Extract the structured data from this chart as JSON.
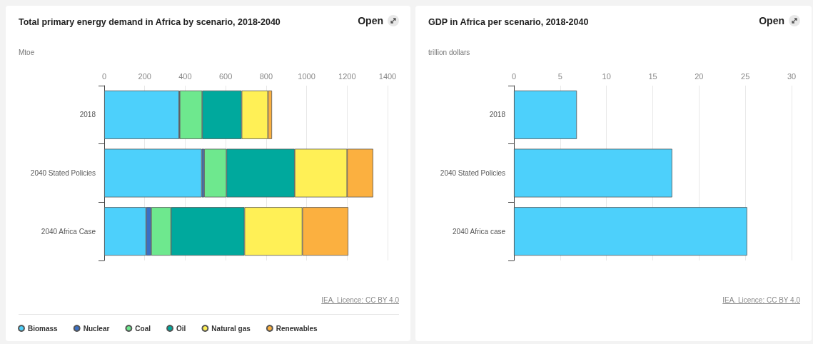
{
  "chart_data": [
    {
      "type": "bar",
      "title": "Total primary energy demand in Africa by scenario, 2018-2040",
      "xlabel": "Mtoe",
      "orientation": "horizontal",
      "stacked": true,
      "categories": [
        "2018",
        "2040 Stated Policies",
        "2040 Africa Case"
      ],
      "series": [
        {
          "name": "Biomass",
          "color": "#4dd0fb",
          "values": [
            370,
            482,
            207
          ]
        },
        {
          "name": "Nuclear",
          "color": "#3a6fc4",
          "values": [
            3,
            12,
            25
          ]
        },
        {
          "name": "Coal",
          "color": "#6ee88e",
          "values": [
            111,
            110,
            98
          ]
        },
        {
          "name": "Oil",
          "color": "#00a99d",
          "values": [
            195,
            337,
            363
          ]
        },
        {
          "name": "Natural gas",
          "color": "#fff056",
          "values": [
            130,
            259,
            286
          ]
        },
        {
          "name": "Renewables",
          "color": "#fbb040",
          "values": [
            20,
            129,
            227
          ]
        }
      ],
      "xlim": [
        0,
        1400
      ],
      "xticks": [
        0,
        200,
        400,
        600,
        800,
        1000,
        1200,
        1400
      ],
      "grid": "x",
      "legend": "bottom",
      "annotations": [
        "Open",
        "IEA. Licence: CC BY 4.0"
      ]
    },
    {
      "type": "bar",
      "title": "GDP in Africa per scenario, 2018-2040",
      "xlabel": "trillion dollars",
      "orientation": "horizontal",
      "categories": [
        "2018",
        "2040 Stated Policies",
        "2040 Africa case"
      ],
      "values": [
        6.8,
        17.1,
        25.2
      ],
      "color": "#4dd0fb",
      "xlim": [
        0,
        30
      ],
      "xticks": [
        0,
        5,
        10,
        15,
        20,
        25,
        30
      ],
      "grid": "x",
      "legend": false,
      "annotations": [
        "Open",
        "IEA. Licence: CC BY 4.0"
      ]
    }
  ]
}
